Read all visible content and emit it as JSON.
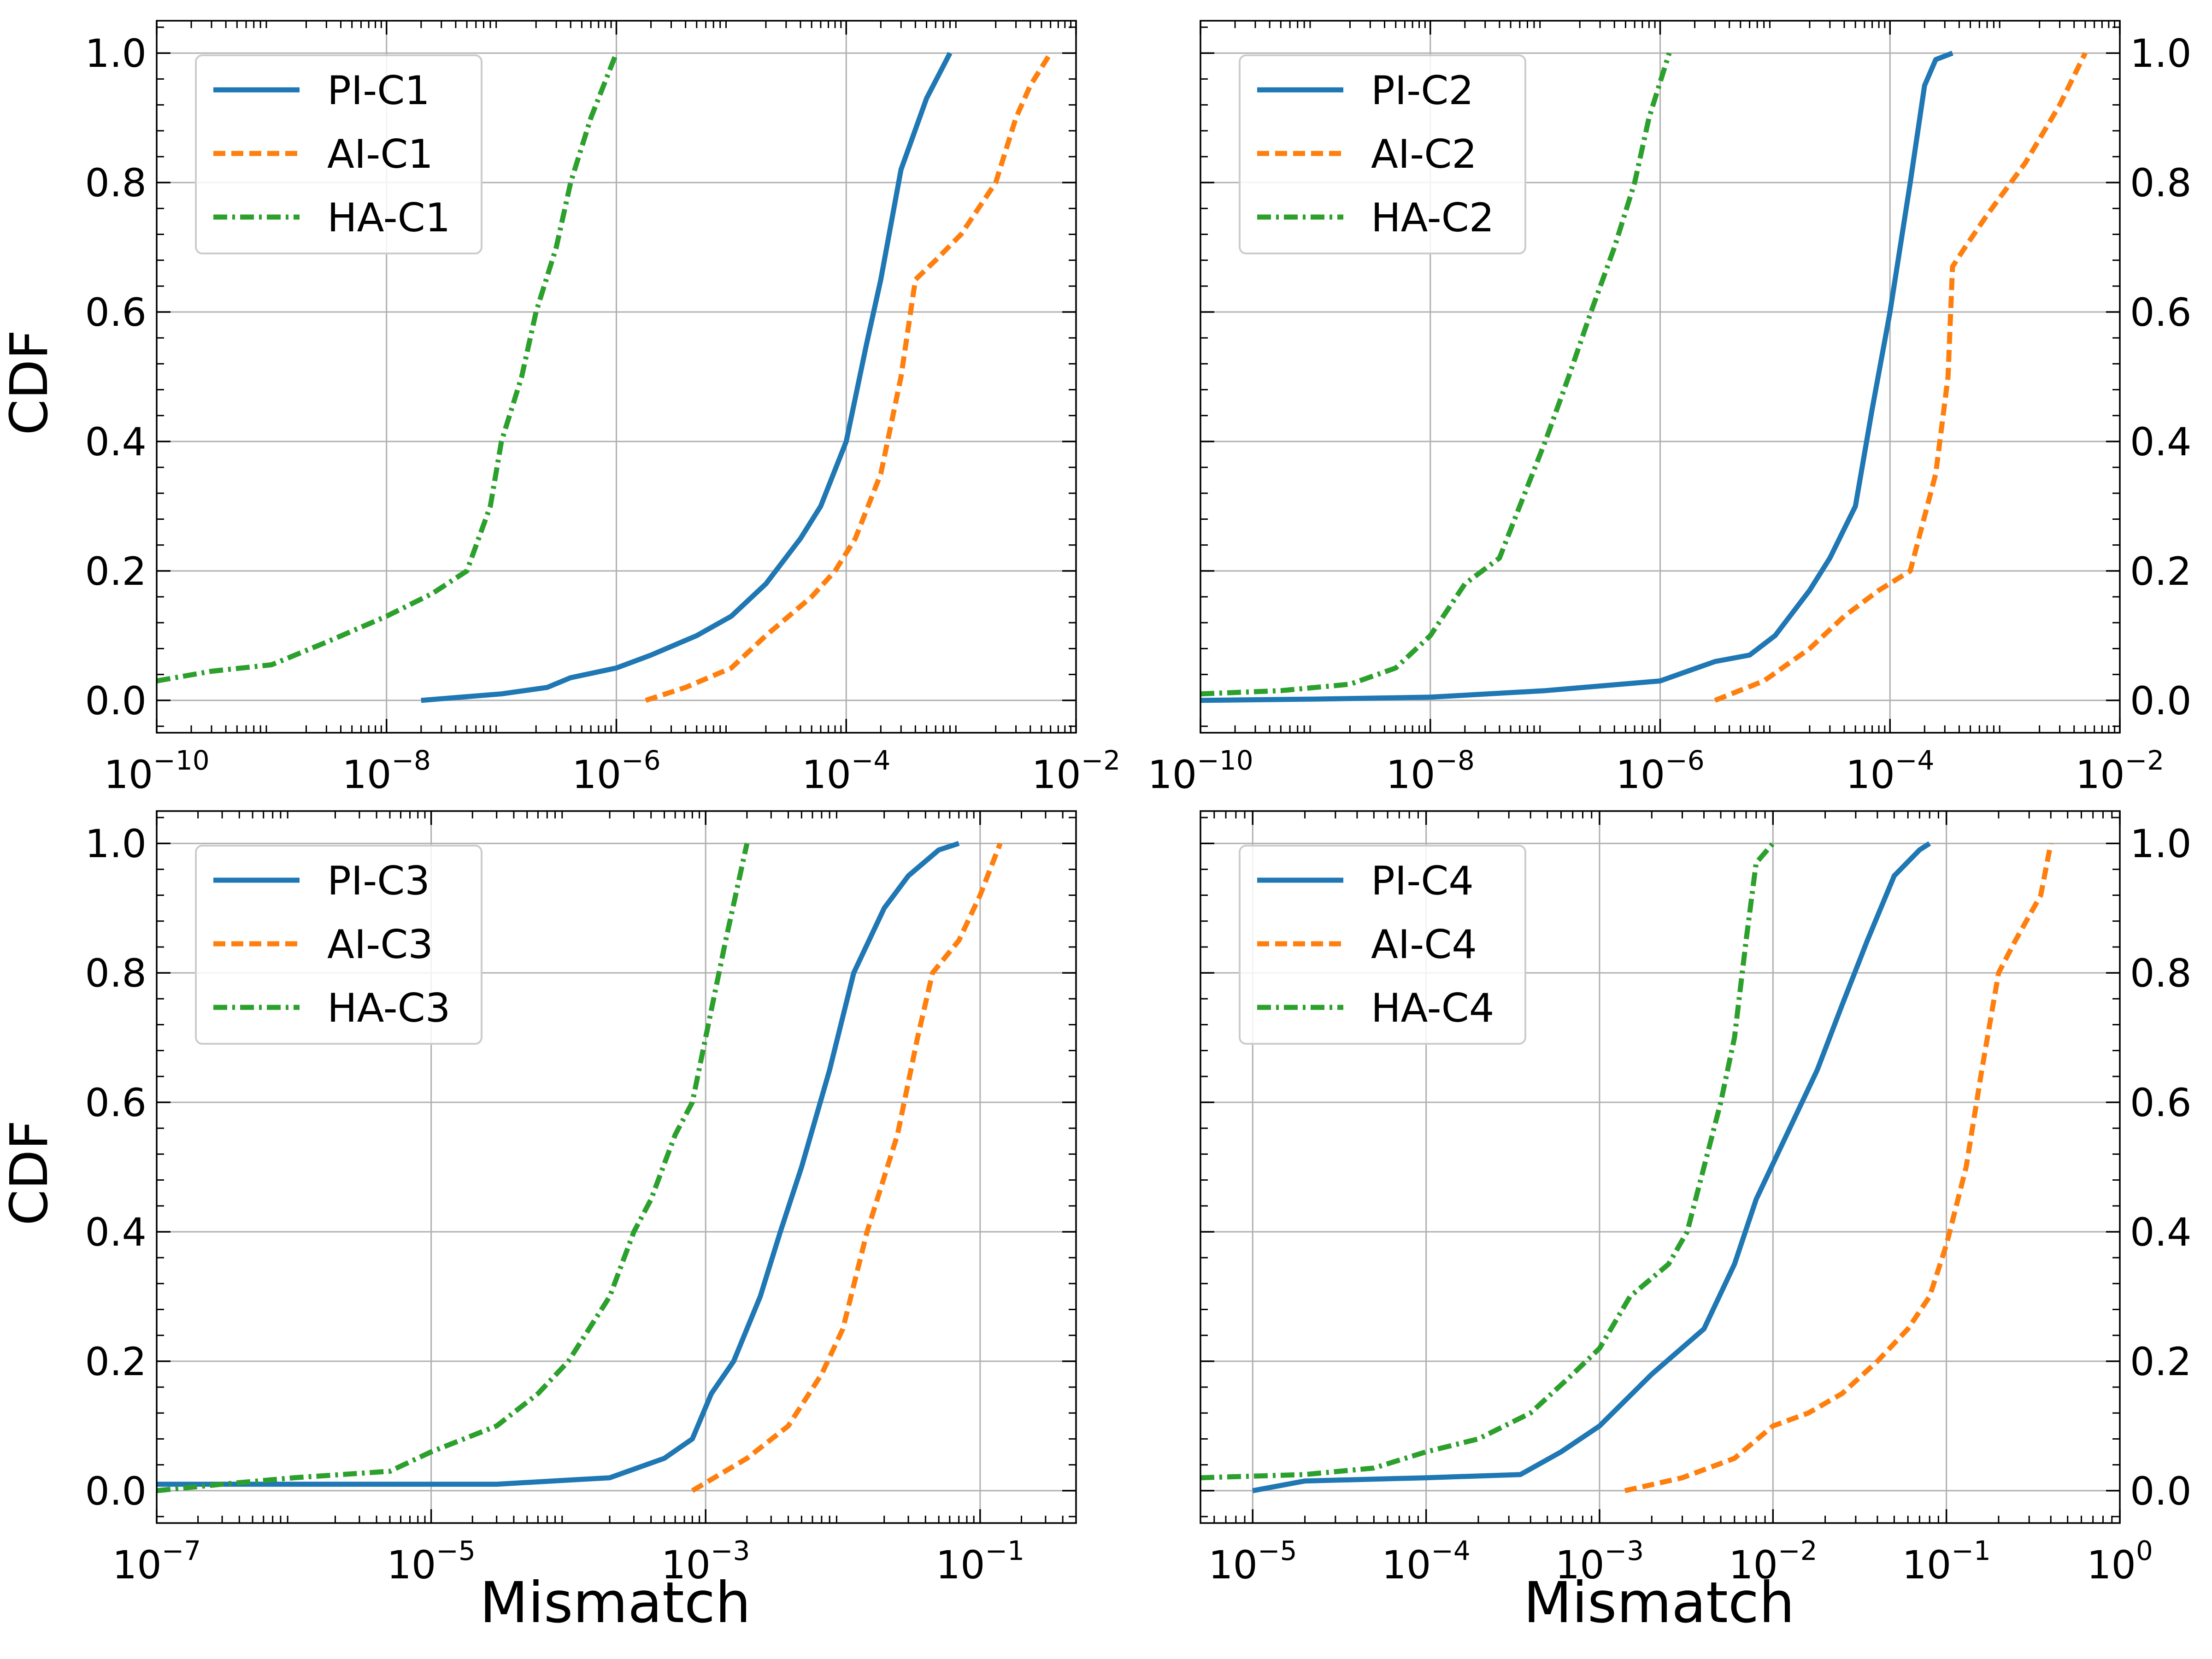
{
  "figure": {
    "x_label": "Mismatch",
    "y_label": "CDF"
  },
  "style": {
    "pi_color": "#1f77b4",
    "ai_color": "#ff7f0e",
    "ha_color": "#2ca02c",
    "grid_color": "#b0b0b0"
  },
  "chart_data": [
    {
      "type": "line",
      "xscale": "log",
      "xlim": [
        1e-10,
        0.01
      ],
      "ylim": [
        -0.05,
        1.05
      ],
      "xticks": [
        1e-10,
        1e-08,
        1e-06,
        0.0001,
        0.01
      ],
      "xtick_labels": [
        {
          "base": "10",
          "exp": "−10"
        },
        {
          "base": "10",
          "exp": "−8"
        },
        {
          "base": "10",
          "exp": "−6"
        },
        {
          "base": "10",
          "exp": "−4"
        },
        {
          "base": "10",
          "exp": "−2"
        }
      ],
      "yticks": [
        0.0,
        0.2,
        0.4,
        0.6,
        0.8,
        1.0
      ],
      "ytick_labels": [
        "0.0",
        "0.2",
        "0.4",
        "0.6",
        "0.8",
        "1.0"
      ],
      "legend_position": "top-left",
      "y_axis_side": "left",
      "series": [
        {
          "name": "PI-C1",
          "style": "solid",
          "x": [
            2e-08,
            1e-07,
            2.5e-07,
            4e-07,
            1e-06,
            2e-06,
            5e-06,
            1e-05,
            2e-05,
            4e-05,
            6e-05,
            0.0001,
            0.00015,
            0.0002,
            0.0003,
            0.0005,
            0.0008
          ],
          "y": [
            0.0,
            0.01,
            0.02,
            0.035,
            0.05,
            0.07,
            0.1,
            0.13,
            0.18,
            0.25,
            0.3,
            0.4,
            0.55,
            0.65,
            0.82,
            0.93,
            1.0
          ]
        },
        {
          "name": "AI-C1",
          "style": "dashed",
          "x": [
            1.8e-06,
            4e-06,
            1e-05,
            2e-05,
            5e-05,
            8e-05,
            0.00012,
            0.0002,
            0.0003,
            0.0004,
            0.0006,
            0.001,
            0.002,
            0.003,
            0.004,
            0.006
          ],
          "y": [
            0.0,
            0.02,
            0.05,
            0.1,
            0.16,
            0.2,
            0.25,
            0.35,
            0.5,
            0.65,
            0.68,
            0.72,
            0.8,
            0.9,
            0.95,
            1.0
          ]
        },
        {
          "name": "HA-C1",
          "style": "dashdot",
          "x": [
            1e-10,
            3e-10,
            1e-09,
            3e-09,
            1e-08,
            2.5e-08,
            5e-08,
            8e-08,
            1e-07,
            1.5e-07,
            2e-07,
            3e-07,
            4e-07,
            6e-07,
            1e-06
          ],
          "y": [
            0.03,
            0.045,
            0.055,
            0.09,
            0.13,
            0.165,
            0.2,
            0.3,
            0.4,
            0.5,
            0.6,
            0.7,
            0.8,
            0.9,
            1.0
          ]
        }
      ]
    },
    {
      "type": "line",
      "xscale": "log",
      "xlim": [
        1e-10,
        0.01
      ],
      "ylim": [
        -0.05,
        1.05
      ],
      "xticks": [
        1e-10,
        1e-08,
        1e-06,
        0.0001,
        0.01
      ],
      "xtick_labels": [
        {
          "base": "10",
          "exp": "−10"
        },
        {
          "base": "10",
          "exp": "−8"
        },
        {
          "base": "10",
          "exp": "−6"
        },
        {
          "base": "10",
          "exp": "−4"
        },
        {
          "base": "10",
          "exp": "−2"
        }
      ],
      "yticks": [
        0.0,
        0.2,
        0.4,
        0.6,
        0.8,
        1.0
      ],
      "ytick_labels": [
        "0.0",
        "0.2",
        "0.4",
        "0.6",
        "0.8",
        "1.0"
      ],
      "legend_position": "top-left",
      "y_axis_side": "right",
      "series": [
        {
          "name": "PI-C2",
          "style": "solid",
          "x": [
            1e-10,
            1e-09,
            1e-08,
            1e-07,
            1e-06,
            3e-06,
            6e-06,
            1e-05,
            2e-05,
            3e-05,
            5e-05,
            7e-05,
            0.0001,
            0.00015,
            0.0002,
            0.00025,
            0.00035
          ],
          "y": [
            0.0,
            0.002,
            0.005,
            0.015,
            0.03,
            0.06,
            0.07,
            0.1,
            0.17,
            0.22,
            0.3,
            0.45,
            0.6,
            0.8,
            0.95,
            0.99,
            1.0
          ]
        },
        {
          "name": "AI-C2",
          "style": "dashed",
          "x": [
            3e-06,
            8e-06,
            2e-05,
            4e-05,
            8e-05,
            0.00015,
            0.00025,
            0.00032,
            0.00035,
            0.00045,
            0.0007,
            0.0015,
            0.003,
            0.005
          ],
          "y": [
            0.0,
            0.03,
            0.08,
            0.13,
            0.17,
            0.2,
            0.35,
            0.5,
            0.67,
            0.7,
            0.75,
            0.83,
            0.92,
            1.0
          ]
        },
        {
          "name": "HA-C2",
          "style": "dashdot",
          "x": [
            1e-10,
            5e-10,
            2e-09,
            5e-09,
            1e-08,
            2e-08,
            4e-08,
            6e-08,
            1e-07,
            1.6e-07,
            2.5e-07,
            4e-07,
            6e-07,
            8e-07,
            1.2e-06
          ],
          "y": [
            0.01,
            0.015,
            0.025,
            0.05,
            0.1,
            0.18,
            0.22,
            0.3,
            0.4,
            0.5,
            0.6,
            0.7,
            0.8,
            0.9,
            1.0
          ]
        }
      ]
    },
    {
      "type": "line",
      "xscale": "log",
      "xlim": [
        1e-07,
        0.5
      ],
      "ylim": [
        -0.05,
        1.05
      ],
      "xticks": [
        1e-07,
        1e-05,
        0.001,
        0.1
      ],
      "xtick_labels": [
        {
          "base": "10",
          "exp": "−7"
        },
        {
          "base": "10",
          "exp": "−5"
        },
        {
          "base": "10",
          "exp": "−3"
        },
        {
          "base": "10",
          "exp": "−1"
        }
      ],
      "yticks": [
        0.0,
        0.2,
        0.4,
        0.6,
        0.8,
        1.0
      ],
      "ytick_labels": [
        "0.0",
        "0.2",
        "0.4",
        "0.6",
        "0.8",
        "1.0"
      ],
      "legend_position": "top-left",
      "y_axis_side": "left",
      "series": [
        {
          "name": "PI-C3",
          "style": "solid",
          "x": [
            1e-07,
            1e-06,
            3e-05,
            0.0002,
            0.0005,
            0.0008,
            0.0011,
            0.0016,
            0.0025,
            0.0035,
            0.005,
            0.008,
            0.012,
            0.02,
            0.03,
            0.05,
            0.07
          ],
          "y": [
            0.01,
            0.01,
            0.01,
            0.02,
            0.05,
            0.08,
            0.15,
            0.2,
            0.3,
            0.4,
            0.5,
            0.65,
            0.8,
            0.9,
            0.95,
            0.99,
            1.0
          ]
        },
        {
          "name": "AI-C3",
          "style": "dashed",
          "x": [
            0.0008,
            0.002,
            0.004,
            0.007,
            0.01,
            0.015,
            0.025,
            0.035,
            0.045,
            0.07,
            0.1,
            0.14
          ],
          "y": [
            0.0,
            0.05,
            0.1,
            0.18,
            0.25,
            0.4,
            0.55,
            0.7,
            0.8,
            0.85,
            0.92,
            1.0
          ]
        },
        {
          "name": "HA-C3",
          "style": "dashdot",
          "x": [
            1e-07,
            3e-07,
            1e-06,
            5e-06,
            1e-05,
            3e-05,
            6e-05,
            0.0001,
            0.0002,
            0.0003,
            0.0004,
            0.0006,
            0.0008,
            0.001,
            0.0014,
            0.002
          ],
          "y": [
            0.0,
            0.01,
            0.02,
            0.03,
            0.06,
            0.1,
            0.15,
            0.2,
            0.3,
            0.4,
            0.45,
            0.55,
            0.6,
            0.7,
            0.85,
            1.0
          ]
        }
      ]
    },
    {
      "type": "line",
      "xscale": "log",
      "xlim": [
        5e-06,
        1
      ],
      "ylim": [
        -0.05,
        1.05
      ],
      "xticks": [
        1e-05,
        0.0001,
        0.001,
        0.01,
        0.1,
        1
      ],
      "xtick_labels": [
        {
          "base": "10",
          "exp": "−5"
        },
        {
          "base": "10",
          "exp": "−4"
        },
        {
          "base": "10",
          "exp": "−3"
        },
        {
          "base": "10",
          "exp": "−2"
        },
        {
          "base": "10",
          "exp": "−1"
        },
        {
          "base": "10",
          "exp": "0"
        }
      ],
      "yticks": [
        0.0,
        0.2,
        0.4,
        0.6,
        0.8,
        1.0
      ],
      "ytick_labels": [
        "0.0",
        "0.2",
        "0.4",
        "0.6",
        "0.8",
        "1.0"
      ],
      "legend_position": "top-left",
      "y_axis_side": "right",
      "series": [
        {
          "name": "PI-C4",
          "style": "solid",
          "x": [
            1e-05,
            2e-05,
            0.0001,
            0.00035,
            0.0006,
            0.001,
            0.002,
            0.004,
            0.006,
            0.008,
            0.012,
            0.018,
            0.025,
            0.035,
            0.05,
            0.07,
            0.08
          ],
          "y": [
            0.0,
            0.015,
            0.02,
            0.025,
            0.06,
            0.1,
            0.18,
            0.25,
            0.35,
            0.45,
            0.55,
            0.65,
            0.75,
            0.85,
            0.95,
            0.99,
            1.0
          ]
        },
        {
          "name": "AI-C4",
          "style": "dashed",
          "x": [
            0.0014,
            0.003,
            0.006,
            0.01,
            0.016,
            0.025,
            0.04,
            0.06,
            0.08,
            0.1,
            0.13,
            0.16,
            0.2,
            0.25,
            0.35,
            0.4
          ],
          "y": [
            0.0,
            0.02,
            0.05,
            0.1,
            0.12,
            0.15,
            0.2,
            0.25,
            0.3,
            0.38,
            0.5,
            0.65,
            0.8,
            0.85,
            0.92,
            1.0
          ]
        },
        {
          "name": "HA-C4",
          "style": "dashdot",
          "x": [
            5e-06,
            2e-05,
            5e-05,
            0.0001,
            0.0002,
            0.0004,
            0.0007,
            0.001,
            0.0015,
            0.0025,
            0.0032,
            0.004,
            0.005,
            0.006,
            0.007,
            0.008,
            0.01
          ],
          "y": [
            0.02,
            0.025,
            0.035,
            0.06,
            0.08,
            0.12,
            0.18,
            0.22,
            0.3,
            0.35,
            0.4,
            0.5,
            0.6,
            0.7,
            0.85,
            0.97,
            1.0
          ]
        }
      ]
    }
  ]
}
